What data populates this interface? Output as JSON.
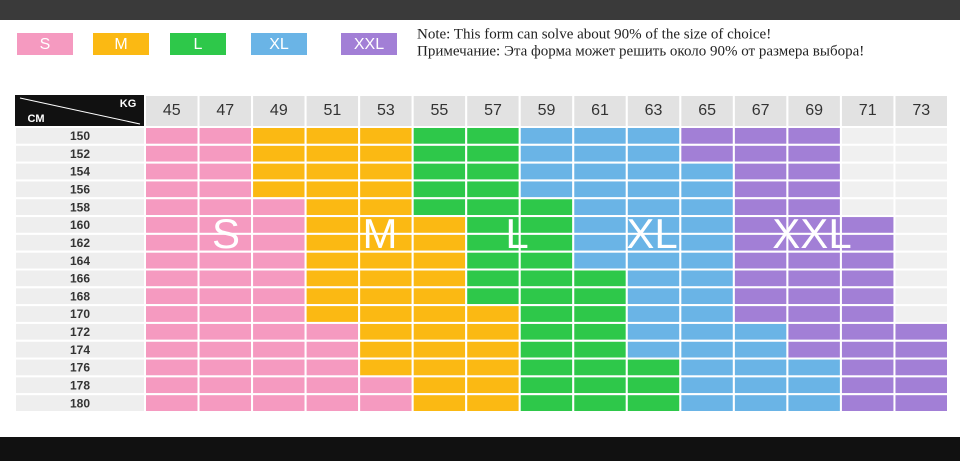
{
  "legend": [
    {
      "label": "S",
      "color": "#f59ac0"
    },
    {
      "label": "M",
      "color": "#fbb913"
    },
    {
      "label": "L",
      "color": "#2ec84a"
    },
    {
      "label": "XL",
      "color": "#6ab4e6"
    },
    {
      "label": "XXL",
      "color": "#a27fd6"
    }
  ],
  "note": [
    "Note: This form can solve about 90% of the size of choice!",
    "Примечание: Эта форма может решить около 90% от размера выбора!"
  ],
  "table": {
    "corner_top": "KG",
    "corner_bottom": "CM",
    "columns": [
      "45",
      "47",
      "49",
      "51",
      "53",
      "55",
      "57",
      "59",
      "61",
      "63",
      "65",
      "67",
      "69",
      "71",
      "73"
    ],
    "rows": [
      {
        "cm": "150",
        "cells": [
          "S",
          "S",
          "M",
          "M",
          "M",
          "L",
          "L",
          "XL",
          "XL",
          "XL",
          "XXL",
          "XXL",
          "XXL",
          null,
          null
        ]
      },
      {
        "cm": "152",
        "cells": [
          "S",
          "S",
          "M",
          "M",
          "M",
          "L",
          "L",
          "XL",
          "XL",
          "XL",
          "XXL",
          "XXL",
          "XXL",
          null,
          null
        ]
      },
      {
        "cm": "154",
        "cells": [
          "S",
          "S",
          "M",
          "M",
          "M",
          "L",
          "L",
          "XL",
          "XL",
          "XL",
          "XL",
          "XXL",
          "XXL",
          null,
          null
        ]
      },
      {
        "cm": "156",
        "cells": [
          "S",
          "S",
          "M",
          "M",
          "M",
          "L",
          "L",
          "XL",
          "XL",
          "XL",
          "XL",
          "XXL",
          "XXL",
          null,
          null
        ]
      },
      {
        "cm": "158",
        "cells": [
          "S",
          "S",
          "S",
          "M",
          "M",
          "L",
          "L",
          "L",
          "XL",
          "XL",
          "XL",
          "XXL",
          "XXL",
          null,
          null
        ]
      },
      {
        "cm": "160",
        "cells": [
          "S",
          "S",
          "S",
          "M",
          "M",
          "M",
          "L",
          "L",
          "XL",
          "XL",
          "XL",
          "XXL",
          "XXL",
          "XXL",
          null
        ]
      },
      {
        "cm": "162",
        "cells": [
          "S",
          "S",
          "S",
          "M",
          "M",
          "M",
          "L",
          "L",
          "XL",
          "XL",
          "XL",
          "XXL",
          "XXL",
          "XXL",
          null
        ]
      },
      {
        "cm": "164",
        "cells": [
          "S",
          "S",
          "S",
          "M",
          "M",
          "M",
          "L",
          "L",
          "XL",
          "XL",
          "XL",
          "XXL",
          "XXL",
          "XXL",
          null
        ]
      },
      {
        "cm": "166",
        "cells": [
          "S",
          "S",
          "S",
          "M",
          "M",
          "M",
          "L",
          "L",
          "L",
          "XL",
          "XL",
          "XXL",
          "XXL",
          "XXL",
          null
        ]
      },
      {
        "cm": "168",
        "cells": [
          "S",
          "S",
          "S",
          "M",
          "M",
          "M",
          "L",
          "L",
          "L",
          "XL",
          "XL",
          "XXL",
          "XXL",
          "XXL",
          null
        ]
      },
      {
        "cm": "170",
        "cells": [
          "S",
          "S",
          "S",
          "M",
          "M",
          "M",
          "M",
          "L",
          "L",
          "XL",
          "XL",
          "XXL",
          "XXL",
          "XXL",
          null
        ]
      },
      {
        "cm": "172",
        "cells": [
          "S",
          "S",
          "S",
          "S",
          "M",
          "M",
          "M",
          "L",
          "L",
          "XL",
          "XL",
          "XL",
          "XXL",
          "XXL",
          "XXL"
        ]
      },
      {
        "cm": "174",
        "cells": [
          "S",
          "S",
          "S",
          "S",
          "M",
          "M",
          "M",
          "L",
          "L",
          "XL",
          "XL",
          "XL",
          "XXL",
          "XXL",
          "XXL"
        ]
      },
      {
        "cm": "176",
        "cells": [
          "S",
          "S",
          "S",
          "S",
          "M",
          "M",
          "M",
          "L",
          "L",
          "L",
          "XL",
          "XL",
          "XL",
          "XXL",
          "XXL"
        ]
      },
      {
        "cm": "178",
        "cells": [
          "S",
          "S",
          "S",
          "S",
          "S",
          "M",
          "M",
          "L",
          "L",
          "L",
          "XL",
          "XL",
          "XL",
          "XXL",
          "XXL"
        ]
      },
      {
        "cm": "180",
        "cells": [
          "S",
          "S",
          "S",
          "S",
          "S",
          "M",
          "M",
          "L",
          "L",
          "L",
          "XL",
          "XL",
          "XL",
          "XXL",
          "XXL"
        ]
      }
    ]
  }
}
